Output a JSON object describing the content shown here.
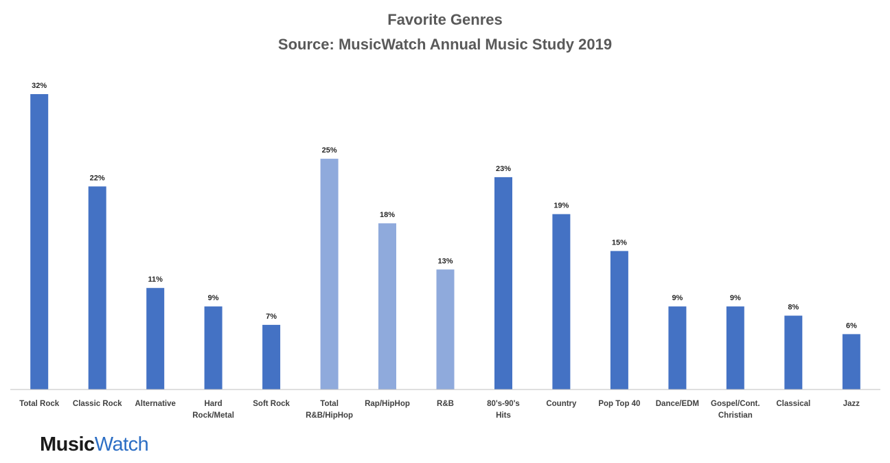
{
  "chart_data": {
    "type": "bar",
    "title": "Favorite Genres",
    "subtitle": "Source: MusicWatch Annual Music Study 2019",
    "categories": [
      [
        "Total Rock"
      ],
      [
        "Classic Rock"
      ],
      [
        "Alternative"
      ],
      [
        "Hard",
        "Rock/Metal"
      ],
      [
        "Soft Rock"
      ],
      [
        "Total",
        "R&B/HipHop"
      ],
      [
        "Rap/HipHop"
      ],
      [
        "R&B"
      ],
      [
        "80's-90's",
        "Hits"
      ],
      [
        "Country"
      ],
      [
        "Pop Top 40"
      ],
      [
        "Dance/EDM"
      ],
      [
        "Gospel/Cont.",
        "Christian"
      ],
      [
        "Classical"
      ],
      [
        "Jazz"
      ]
    ],
    "values": [
      32,
      22,
      11,
      9,
      7,
      25,
      18,
      13,
      23,
      19,
      15,
      9,
      9,
      8,
      6
    ],
    "data_labels": [
      "32%",
      "22%",
      "11%",
      "9%",
      "7%",
      "25%",
      "18%",
      "13%",
      "23%",
      "19%",
      "15%",
      "9%",
      "9%",
      "8%",
      "6%"
    ],
    "bar_colors": [
      "#4472c4",
      "#4472c4",
      "#4472c4",
      "#4472c4",
      "#4472c4",
      "#8faadc",
      "#8faadc",
      "#8faadc",
      "#4472c4",
      "#4472c4",
      "#4472c4",
      "#4472c4",
      "#4472c4",
      "#4472c4",
      "#4472c4"
    ],
    "ylim": [
      0,
      32
    ],
    "grid": false,
    "legend": "none",
    "axis_color": "#bfbfbf"
  },
  "logo": {
    "part1": "Music",
    "part2": "Watch"
  }
}
